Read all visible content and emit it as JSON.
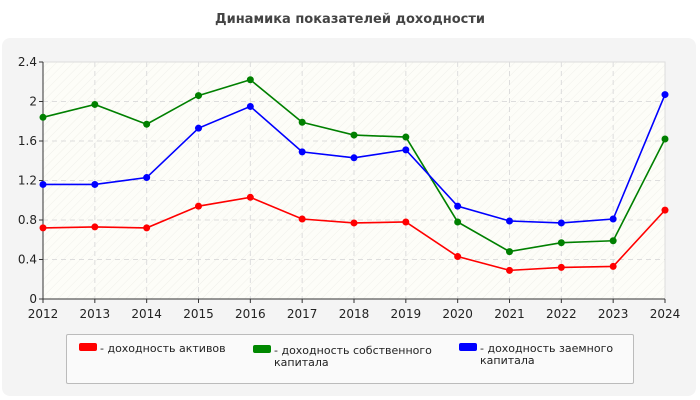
{
  "chart_data": {
    "type": "line",
    "title": "Динамика показателей доходности",
    "x": [
      "2012",
      "2013",
      "2014",
      "2015",
      "2016",
      "2017",
      "2018",
      "2019",
      "2020",
      "2021",
      "2022",
      "2023",
      "2024"
    ],
    "ylim": [
      0,
      2.4
    ],
    "yticks": [
      "0",
      "0.4",
      "0.8",
      "1.2",
      "1.6",
      "2",
      "2.4"
    ],
    "grid": true,
    "legend_placement": "bottom",
    "series": [
      {
        "name": "- доходность активов",
        "color": "#ff0000",
        "values": [
          0.72,
          0.73,
          0.72,
          0.94,
          1.03,
          0.81,
          0.77,
          0.78,
          0.43,
          0.29,
          0.32,
          0.33,
          0.9
        ]
      },
      {
        "name": "- доходность собственного капитала",
        "color": "#008000",
        "values": [
          1.84,
          1.97,
          1.77,
          2.06,
          2.22,
          1.79,
          1.66,
          1.64,
          0.78,
          0.48,
          0.57,
          0.59,
          1.62
        ]
      },
      {
        "name": "- доходность заемного капитала",
        "color": "#0000ff",
        "values": [
          1.16,
          1.16,
          1.23,
          1.73,
          1.95,
          1.49,
          1.43,
          1.51,
          0.94,
          0.79,
          0.77,
          0.81,
          2.07
        ]
      }
    ]
  }
}
